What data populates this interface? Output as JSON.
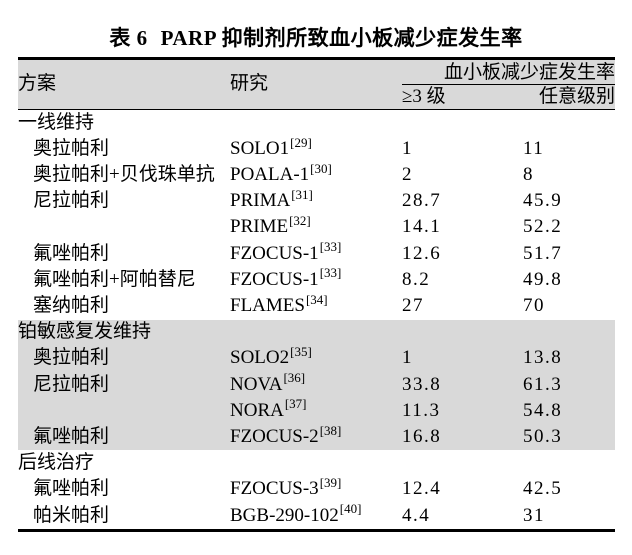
{
  "title": {
    "prefix": "表 6",
    "text": "PARP 抑制剂所致血小板减少症发生率"
  },
  "table": {
    "columns": {
      "scheme": "方案",
      "study": "研究",
      "group": "血小板减少症发生率",
      "grade3": "≥3 级",
      "any_grade": "任意级别"
    },
    "sections": [
      {
        "title": "一线维持",
        "shaded": false,
        "rows": [
          {
            "scheme": "奥拉帕利",
            "study": "SOLO1",
            "ref": "[29]",
            "grade3": "1",
            "any_grade": "11"
          },
          {
            "scheme": "奥拉帕利+贝伐珠单抗",
            "study": "POALA-1",
            "ref": "[30]",
            "grade3": "2",
            "any_grade": "8"
          },
          {
            "scheme": "尼拉帕利",
            "study": "PRIMA",
            "ref": "[31]",
            "grade3": "28.7",
            "any_grade": "45.9"
          },
          {
            "scheme": "",
            "study": "PRIME",
            "ref": "[32]",
            "grade3": "14.1",
            "any_grade": "52.2"
          },
          {
            "scheme": "氟唑帕利",
            "study": "FZOCUS-1",
            "ref": "[33]",
            "grade3": "12.6",
            "any_grade": "51.7"
          },
          {
            "scheme": "氟唑帕利+阿帕替尼",
            "study": "FZOCUS-1",
            "ref": "[33]",
            "grade3": "8.2",
            "any_grade": "49.8"
          },
          {
            "scheme": "塞纳帕利",
            "study": "FLAMES",
            "ref": "[34]",
            "grade3": "27",
            "any_grade": "70"
          }
        ]
      },
      {
        "title": "铂敏感复发维持",
        "shaded": true,
        "rows": [
          {
            "scheme": "奥拉帕利",
            "study": "SOLO2",
            "ref": "[35]",
            "grade3": "1",
            "any_grade": "13.8"
          },
          {
            "scheme": "尼拉帕利",
            "study": "NOVA",
            "ref": "[36]",
            "grade3": "33.8",
            "any_grade": "61.3"
          },
          {
            "scheme": "",
            "study": "NORA",
            "ref": "[37]",
            "grade3": "11.3",
            "any_grade": "54.8"
          },
          {
            "scheme": "氟唑帕利",
            "study": "FZOCUS-2",
            "ref": "[38]",
            "grade3": "16.8",
            "any_grade": "50.3"
          }
        ]
      },
      {
        "title": "后线治疗",
        "shaded": false,
        "rows": [
          {
            "scheme": "氟唑帕利",
            "study": "FZOCUS-3",
            "ref": "[39]",
            "grade3": "12.4",
            "any_grade": "42.5"
          },
          {
            "scheme": "帕米帕利",
            "study": "BGB-290-102",
            "ref": "[40]",
            "grade3": "4.4",
            "any_grade": "31"
          }
        ]
      }
    ]
  },
  "colors": {
    "shade": "#d9d9d9",
    "rule": "#000000",
    "text": "#000000",
    "background": "#ffffff"
  }
}
